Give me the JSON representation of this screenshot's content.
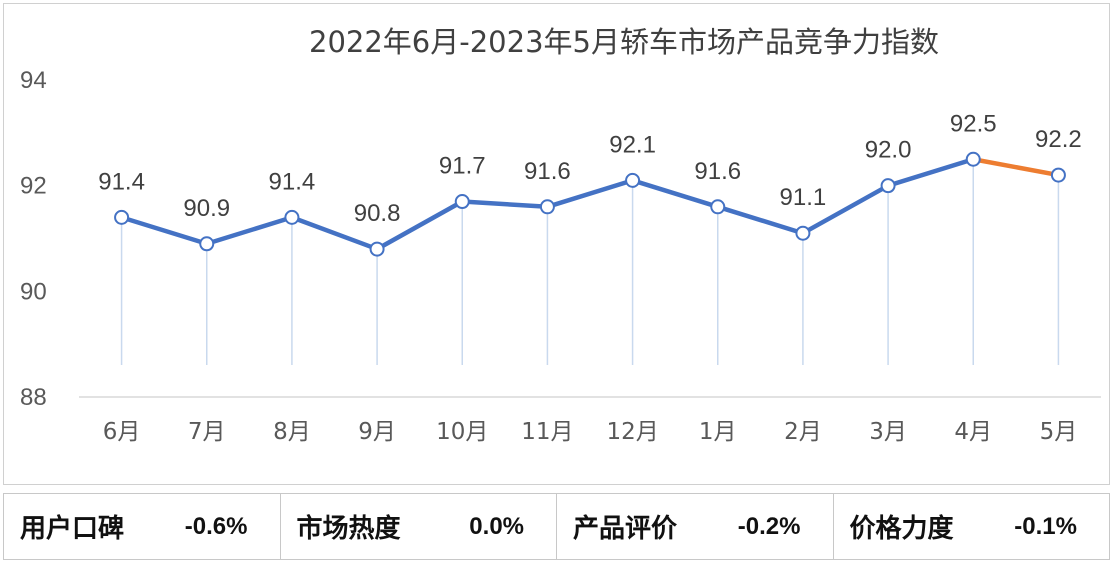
{
  "chart_data": {
    "type": "line",
    "title": "2022年6月-2023年5月轿车市场产品竞争力指数",
    "categories": [
      "6月",
      "7月",
      "8月",
      "9月",
      "10月",
      "11月",
      "12月",
      "1月",
      "2月",
      "3月",
      "4月",
      "5月"
    ],
    "values": [
      91.4,
      90.9,
      91.4,
      90.8,
      91.7,
      91.6,
      92.1,
      91.6,
      91.1,
      92.0,
      92.5,
      92.2
    ],
    "value_labels": [
      "91.4",
      "90.9",
      "91.4",
      "90.8",
      "91.7",
      "91.6",
      "92.1",
      "91.6",
      "91.1",
      "92.0",
      "92.5",
      "92.2"
    ],
    "ylim": [
      88,
      94
    ],
    "yticks": [
      "88",
      "90",
      "92",
      "94"
    ],
    "xlabel": "",
    "ylabel": "",
    "grid": false,
    "colors": {
      "line": "#4472c4",
      "last_segment": "#ed7d31",
      "drop_line": "#c9d9ee"
    }
  },
  "summary": [
    {
      "label": "用户口碑",
      "value": "-0.6%"
    },
    {
      "label": "市场热度",
      "value": "0.0%"
    },
    {
      "label": "产品评价",
      "value": "-0.2%"
    },
    {
      "label": "价格力度",
      "value": "-0.1%"
    }
  ]
}
